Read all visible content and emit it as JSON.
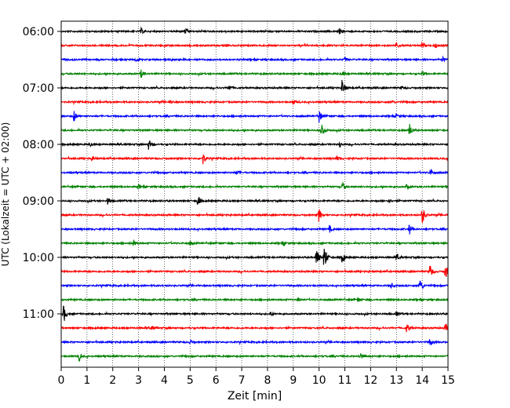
{
  "chart_data": {
    "type": "line",
    "title": "",
    "xlabel": "Zeit  [min]",
    "ylabel": "UTC (Lokalzeit = UTC + 02:00)",
    "xlim": [
      0,
      15
    ],
    "x_ticks": [
      0,
      1,
      2,
      3,
      4,
      5,
      6,
      7,
      8,
      9,
      10,
      11,
      12,
      13,
      14,
      15
    ],
    "y_tick_labels": [
      "06:00",
      "07:00",
      "08:00",
      "09:00",
      "10:00",
      "11:00"
    ],
    "grid": "vertical dotted",
    "colors": [
      "#000000",
      "#ff0000",
      "#0000ff",
      "#008000"
    ],
    "traces": [
      {
        "label": "06:00",
        "color": "#000000",
        "events": [
          [
            3.1,
            0.4
          ],
          [
            4.8,
            0.35
          ],
          [
            10.8,
            0.35
          ]
        ]
      },
      {
        "label": "06:15",
        "color": "#ff0000",
        "events": [
          [
            13.0,
            0.45
          ],
          [
            14.0,
            0.35
          ],
          [
            14.5,
            0.35
          ]
        ]
      },
      {
        "label": "06:30",
        "color": "#0000ff",
        "events": [
          [
            2.9,
            0.3
          ],
          [
            11.0,
            0.3
          ],
          [
            14.8,
            0.35
          ]
        ]
      },
      {
        "label": "06:45",
        "color": "#008000",
        "events": [
          [
            3.1,
            0.55
          ],
          [
            10.9,
            0.3
          ],
          [
            14.0,
            0.3
          ]
        ]
      },
      {
        "label": "07:00",
        "color": "#000000",
        "events": [
          [
            6.5,
            0.5
          ],
          [
            10.9,
            1.3
          ],
          [
            13.2,
            0.3
          ]
        ]
      },
      {
        "label": "07:15",
        "color": "#ff0000",
        "events": [
          [
            4.2,
            0.25
          ],
          [
            9.0,
            0.3
          ],
          [
            12.8,
            0.3
          ]
        ]
      },
      {
        "label": "07:30",
        "color": "#0000ff",
        "events": [
          [
            0.5,
            0.8
          ],
          [
            10.0,
            1.0
          ],
          [
            13.0,
            0.3
          ]
        ]
      },
      {
        "label": "07:45",
        "color": "#008000",
        "events": [
          [
            10.1,
            1.1
          ],
          [
            13.5,
            1.0
          ]
        ]
      },
      {
        "label": "08:00",
        "color": "#000000",
        "events": [
          [
            1.1,
            0.35
          ],
          [
            3.4,
            0.8
          ],
          [
            10.8,
            0.35
          ]
        ]
      },
      {
        "label": "08:15",
        "color": "#ff0000",
        "events": [
          [
            1.2,
            0.35
          ],
          [
            5.5,
            0.85
          ],
          [
            10.7,
            0.3
          ]
        ]
      },
      {
        "label": "08:30",
        "color": "#0000ff",
        "events": [
          [
            6.8,
            0.3
          ],
          [
            14.3,
            0.6
          ]
        ]
      },
      {
        "label": "08:45",
        "color": "#008000",
        "events": [
          [
            3.0,
            0.3
          ],
          [
            10.9,
            0.7
          ],
          [
            13.4,
            0.3
          ]
        ]
      },
      {
        "label": "09:00",
        "color": "#000000",
        "events": [
          [
            1.8,
            0.6
          ],
          [
            5.3,
            0.8
          ],
          [
            12.7,
            0.3
          ]
        ]
      },
      {
        "label": "09:15",
        "color": "#ff0000",
        "events": [
          [
            10.0,
            1.0
          ],
          [
            14.0,
            1.4
          ]
        ]
      },
      {
        "label": "09:30",
        "color": "#0000ff",
        "events": [
          [
            10.4,
            0.5
          ],
          [
            13.5,
            0.75
          ]
        ]
      },
      {
        "label": "09:45",
        "color": "#008000",
        "events": [
          [
            2.8,
            0.5
          ],
          [
            5.0,
            0.3
          ],
          [
            8.6,
            0.3
          ]
        ]
      },
      {
        "label": "10:00",
        "color": "#000000",
        "events": [
          [
            9.9,
            1.6
          ],
          [
            10.2,
            2.1
          ],
          [
            10.9,
            0.9
          ],
          [
            13.0,
            0.55
          ]
        ]
      },
      {
        "label": "10:15",
        "color": "#ff0000",
        "events": [
          [
            14.3,
            1.2
          ],
          [
            14.9,
            1.1
          ]
        ]
      },
      {
        "label": "10:30",
        "color": "#0000ff",
        "events": [
          [
            12.8,
            0.3
          ],
          [
            13.9,
            1.2
          ]
        ]
      },
      {
        "label": "10:45",
        "color": "#008000",
        "events": [
          [
            9.2,
            0.3
          ],
          [
            11.5,
            0.3
          ]
        ]
      },
      {
        "label": "11:00",
        "color": "#000000",
        "events": [
          [
            0.1,
            1.3
          ],
          [
            8.1,
            0.35
          ],
          [
            13.0,
            0.3
          ]
        ]
      },
      {
        "label": "11:15",
        "color": "#ff0000",
        "events": [
          [
            3.5,
            0.3
          ],
          [
            13.4,
            0.7
          ],
          [
            14.9,
            0.6
          ]
        ]
      },
      {
        "label": "11:30",
        "color": "#0000ff",
        "events": [
          [
            5.0,
            0.25
          ],
          [
            14.3,
            0.55
          ]
        ]
      },
      {
        "label": "11:45",
        "color": "#008000",
        "events": [
          [
            0.7,
            0.75
          ],
          [
            11.6,
            0.55
          ]
        ]
      }
    ]
  }
}
